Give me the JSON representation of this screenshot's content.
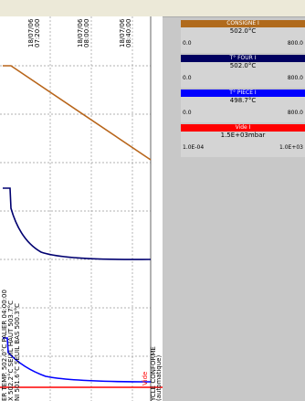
{
  "chart": {
    "time_labels": [
      {
        "date": "18/07/06",
        "time": "07:20:00"
      },
      {
        "date": "18/07/06",
        "time": "08:00:00"
      },
      {
        "date": "18/07/06",
        "time": "08:40:00"
      }
    ],
    "annotations": [
      "ER TEMP. 502.0°C PALIER 04:00:00",
      "X 502.2°C SEUIL HAUT 503.7°C",
      "NI 501.6°C SEUIL BAS 500.3°C"
    ],
    "vide_label": "Vide",
    "status": [
      "YCLE CONFORME",
      "(automatique)"
    ]
  },
  "panels": [
    {
      "title": "CONSIGNE I",
      "value": "502.0°C",
      "min": "0.0",
      "max": "800.0"
    },
    {
      "title": "T° FOUR I",
      "value": "502.0°C",
      "min": "0.0",
      "max": "800.0"
    },
    {
      "title": "T° PIECE I",
      "value": "498.7°C",
      "min": "0.0",
      "max": "800.0"
    },
    {
      "title": "Vide I",
      "value": "1.5E+03mbar",
      "min": "1.0E-04",
      "max": "1.0E+03"
    }
  ]
}
